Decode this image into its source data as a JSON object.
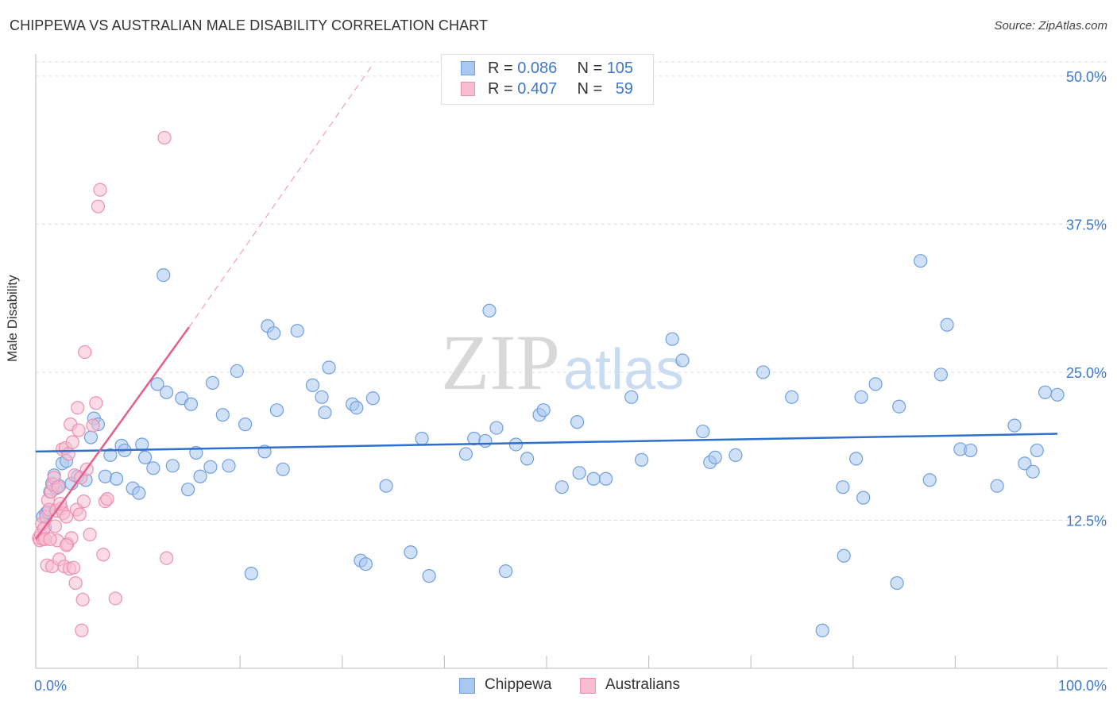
{
  "colors": {
    "blue_fill": "#a9c8f0",
    "blue_stroke": "#6f9fe0",
    "blue_line": "#2e6fcf",
    "pink_fill": "#f8bdd0",
    "pink_stroke": "#ee8fae",
    "pink_line": "#e55f8d",
    "grid": "#dddddd",
    "tick_text": "#3d78c9"
  },
  "header": {
    "title": "CHIPPEWA VS AUSTRALIAN MALE DISABILITY CORRELATION CHART",
    "source": "Source: ZipAtlas.com"
  },
  "watermark": {
    "zip": "ZIP",
    "atlas": "atlas"
  },
  "legend": {
    "rows": [
      {
        "r_label": "R = ",
        "r_value": "0.086",
        "n_label": "N = ",
        "n_value": "105"
      },
      {
        "r_label": "R = ",
        "r_value": "0.407",
        "n_label": "N = ",
        "n_value": "59"
      }
    ],
    "series": [
      "Chippewa",
      "Australians"
    ]
  },
  "chart_data": {
    "type": "scatter",
    "title": "CHIPPEWA VS AUSTRALIAN MALE DISABILITY CORRELATION CHART",
    "xlabel": "",
    "ylabel": "Male Disability",
    "xlim": [
      0,
      100
    ],
    "ylim": [
      0,
      50
    ],
    "x_tick_labels": [
      "0.0%",
      "100.0%"
    ],
    "y_ticks": [
      12.5,
      25.0,
      37.5,
      50.0
    ],
    "y_tick_labels": [
      "12.5%",
      "25.0%",
      "37.5%",
      "50.0%"
    ],
    "grid": true,
    "series": [
      {
        "name": "Chippewa",
        "r": 0.086,
        "n": 105,
        "trend": {
          "x": [
            0,
            100
          ],
          "y": [
            18.3,
            19.8
          ]
        },
        "points": [
          [
            0.7,
            12.8
          ],
          [
            0.9,
            11.9
          ],
          [
            1.0,
            13.1
          ],
          [
            1.2,
            13.2
          ],
          [
            1.4,
            14.9
          ],
          [
            1.6,
            15.6
          ],
          [
            1.8,
            16.3
          ],
          [
            2.0,
            15.2
          ],
          [
            2.3,
            15.4
          ],
          [
            2.6,
            17.3
          ],
          [
            3.0,
            17.5
          ],
          [
            3.5,
            15.6
          ],
          [
            4.1,
            16.2
          ],
          [
            4.9,
            15.9
          ],
          [
            5.4,
            19.5
          ],
          [
            5.7,
            21.1
          ],
          [
            6.1,
            20.6
          ],
          [
            6.8,
            16.2
          ],
          [
            7.3,
            18.0
          ],
          [
            7.9,
            16.0
          ],
          [
            8.4,
            18.8
          ],
          [
            8.7,
            18.4
          ],
          [
            9.5,
            15.2
          ],
          [
            10.1,
            14.8
          ],
          [
            10.4,
            18.9
          ],
          [
            10.7,
            17.8
          ],
          [
            11.5,
            16.9
          ],
          [
            11.9,
            24.0
          ],
          [
            12.5,
            33.2
          ],
          [
            12.8,
            23.3
          ],
          [
            13.4,
            17.1
          ],
          [
            14.3,
            22.8
          ],
          [
            14.9,
            15.1
          ],
          [
            15.2,
            22.3
          ],
          [
            15.7,
            18.2
          ],
          [
            16.1,
            16.2
          ],
          [
            17.1,
            17.0
          ],
          [
            17.3,
            24.1
          ],
          [
            18.3,
            21.4
          ],
          [
            18.9,
            17.1
          ],
          [
            19.7,
            25.1
          ],
          [
            20.5,
            20.6
          ],
          [
            21.1,
            8.0
          ],
          [
            22.4,
            18.3
          ],
          [
            22.7,
            28.9
          ],
          [
            23.3,
            28.3
          ],
          [
            23.6,
            21.8
          ],
          [
            24.2,
            16.8
          ],
          [
            25.6,
            28.5
          ],
          [
            27.1,
            23.9
          ],
          [
            28.0,
            22.9
          ],
          [
            28.3,
            21.6
          ],
          [
            28.7,
            25.4
          ],
          [
            31.0,
            22.3
          ],
          [
            31.4,
            22.0
          ],
          [
            31.8,
            9.1
          ],
          [
            32.3,
            8.8
          ],
          [
            33.0,
            22.8
          ],
          [
            34.3,
            15.4
          ],
          [
            36.7,
            9.8
          ],
          [
            37.8,
            19.4
          ],
          [
            38.5,
            7.8
          ],
          [
            42.1,
            18.1
          ],
          [
            42.9,
            19.4
          ],
          [
            44.0,
            19.2
          ],
          [
            44.4,
            30.2
          ],
          [
            45.1,
            20.3
          ],
          [
            46.0,
            8.2
          ],
          [
            47.0,
            18.9
          ],
          [
            48.1,
            17.7
          ],
          [
            49.3,
            21.4
          ],
          [
            49.7,
            21.8
          ],
          [
            51.5,
            15.3
          ],
          [
            53.0,
            20.8
          ],
          [
            53.2,
            16.5
          ],
          [
            54.6,
            16.0
          ],
          [
            55.8,
            16.0
          ],
          [
            58.3,
            22.9
          ],
          [
            59.3,
            17.6
          ],
          [
            62.3,
            27.8
          ],
          [
            63.3,
            26.0
          ],
          [
            65.3,
            20.0
          ],
          [
            66.0,
            17.4
          ],
          [
            66.5,
            17.8
          ],
          [
            68.5,
            18.0
          ],
          [
            71.2,
            25.0
          ],
          [
            74.0,
            22.9
          ],
          [
            77.0,
            3.2
          ],
          [
            79.0,
            15.3
          ],
          [
            79.1,
            9.5
          ],
          [
            80.3,
            17.7
          ],
          [
            80.8,
            22.9
          ],
          [
            81.0,
            14.4
          ],
          [
            82.2,
            24.0
          ],
          [
            84.3,
            7.2
          ],
          [
            84.5,
            22.1
          ],
          [
            86.6,
            34.4
          ],
          [
            87.5,
            15.9
          ],
          [
            88.6,
            24.8
          ],
          [
            89.2,
            29.0
          ],
          [
            90.5,
            18.5
          ],
          [
            91.5,
            18.4
          ],
          [
            94.1,
            15.4
          ],
          [
            95.8,
            20.5
          ],
          [
            96.8,
            17.3
          ],
          [
            97.6,
            16.6
          ],
          [
            98.0,
            18.4
          ],
          [
            98.8,
            23.3
          ],
          [
            100.0,
            23.1
          ]
        ]
      },
      {
        "name": "Australians",
        "r": 0.407,
        "n": 59,
        "trend": {
          "x": [
            0,
            15
          ],
          "y": [
            10.9,
            28.8
          ]
        },
        "trend_extension": {
          "x": [
            15,
            33
          ],
          "y": [
            28.8,
            51.0
          ]
        },
        "points": [
          [
            0.3,
            11.0
          ],
          [
            0.4,
            10.8
          ],
          [
            0.5,
            11.3
          ],
          [
            0.6,
            12.2
          ],
          [
            0.7,
            10.9
          ],
          [
            0.8,
            11.8
          ],
          [
            0.9,
            10.9
          ],
          [
            1.0,
            12.8
          ],
          [
            1.1,
            8.7
          ],
          [
            1.2,
            14.2
          ],
          [
            1.3,
            13.4
          ],
          [
            1.5,
            14.9
          ],
          [
            1.6,
            8.6
          ],
          [
            1.7,
            15.5
          ],
          [
            1.8,
            16.1
          ],
          [
            1.9,
            12.0
          ],
          [
            2.0,
            13.3
          ],
          [
            2.1,
            10.8
          ],
          [
            2.2,
            15.3
          ],
          [
            2.3,
            9.2
          ],
          [
            2.5,
            13.5
          ],
          [
            2.6,
            18.5
          ],
          [
            2.7,
            13.1
          ],
          [
            2.8,
            8.6
          ],
          [
            2.9,
            18.6
          ],
          [
            3.0,
            12.8
          ],
          [
            3.1,
            10.5
          ],
          [
            3.2,
            18.1
          ],
          [
            3.3,
            8.4
          ],
          [
            3.4,
            20.6
          ],
          [
            3.5,
            11.0
          ],
          [
            3.6,
            19.1
          ],
          [
            3.7,
            8.5
          ],
          [
            3.8,
            16.3
          ],
          [
            3.9,
            7.2
          ],
          [
            4.0,
            13.4
          ],
          [
            4.1,
            22.0
          ],
          [
            4.2,
            20.1
          ],
          [
            4.3,
            13.0
          ],
          [
            4.4,
            16.1
          ],
          [
            4.5,
            3.2
          ],
          [
            4.6,
            5.8
          ],
          [
            4.7,
            14.1
          ],
          [
            4.8,
            26.7
          ],
          [
            5.0,
            16.8
          ],
          [
            5.3,
            11.3
          ],
          [
            5.6,
            20.5
          ],
          [
            5.9,
            22.4
          ],
          [
            6.1,
            39.0
          ],
          [
            6.3,
            40.4
          ],
          [
            6.6,
            9.6
          ],
          [
            6.8,
            14.1
          ],
          [
            7.0,
            14.3
          ],
          [
            7.8,
            5.9
          ],
          [
            12.6,
            44.8
          ],
          [
            12.8,
            9.3
          ],
          [
            2.4,
            13.9
          ],
          [
            3.0,
            10.4
          ],
          [
            1.4,
            10.9
          ]
        ]
      }
    ]
  }
}
